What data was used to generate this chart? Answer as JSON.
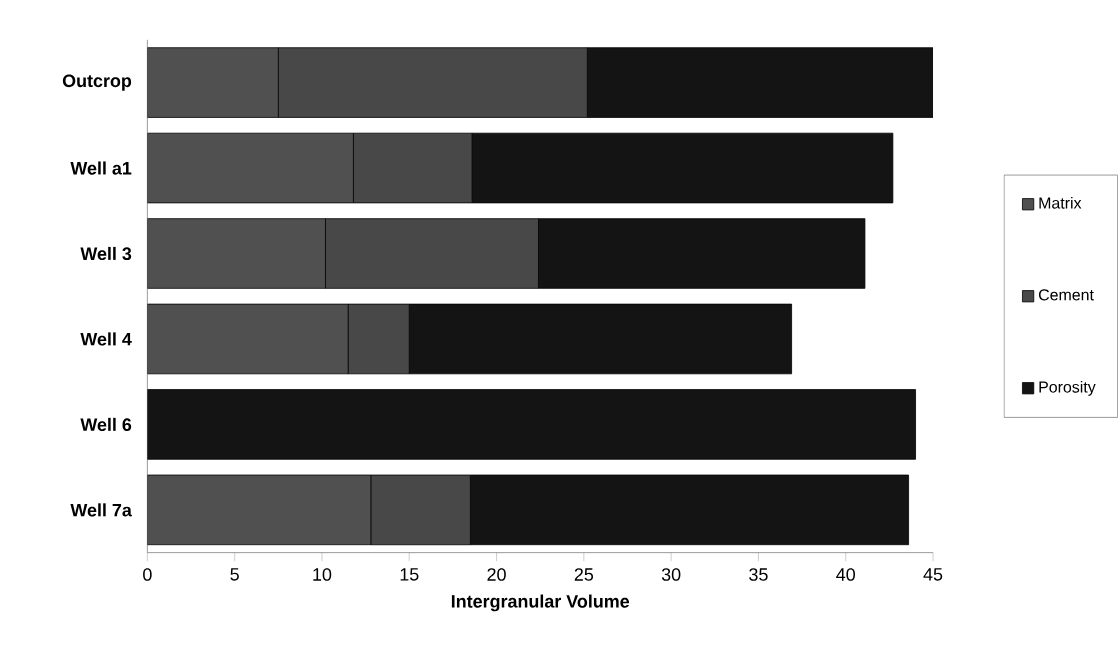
{
  "chart_data": {
    "type": "bar",
    "orientation": "horizontal",
    "stacked": true,
    "xlabel": "Intergranular Volume",
    "categories": [
      "Outcrop",
      "Well a1",
      "Well 3",
      "Well 4",
      "Well 6",
      "Well 7a"
    ],
    "series": [
      {
        "name": "Matrix",
        "color": "#505050",
        "values": [
          7.5,
          11.8,
          10.2,
          11.5,
          0,
          12.8
        ]
      },
      {
        "name": "Cement",
        "color": "#484848",
        "values": [
          17.7,
          6.8,
          12.2,
          3.5,
          0,
          5.7
        ]
      },
      {
        "name": "Porosity",
        "color": "#141414",
        "values": [
          19.9,
          24.1,
          18.7,
          21.9,
          44.0,
          25.1
        ]
      }
    ],
    "xlim": [
      0,
      45
    ],
    "xticks": [
      0,
      5,
      10,
      15,
      20,
      25,
      30,
      35,
      40,
      45
    ],
    "grid": false,
    "legend": "right"
  }
}
